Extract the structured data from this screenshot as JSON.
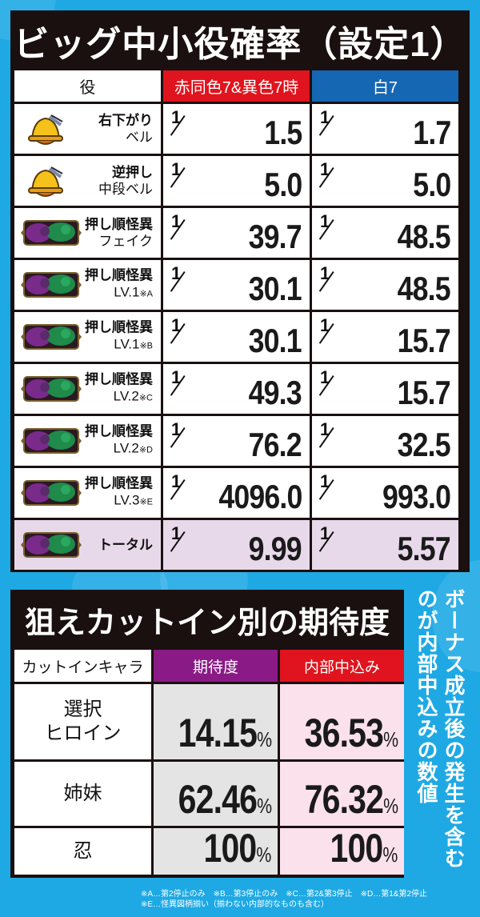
{
  "top_table": {
    "title": "ビッグ中小役確率（設定1）",
    "headers": [
      "役",
      "赤同色7&異色7時",
      "白7"
    ],
    "header_colors": {
      "col1": "#ffffff",
      "col2": "#e0141e",
      "col3": "#1567b4"
    },
    "rows": [
      {
        "icon": "bell-icon",
        "label1": "右下がり",
        "label2": "ベル",
        "note": "",
        "red_denom": "1.5",
        "white_denom": "1.7"
      },
      {
        "icon": "bell-icon",
        "label1": "逆押し",
        "label2": "中段ベル",
        "note": "",
        "red_denom": "5.0",
        "white_denom": "5.0"
      },
      {
        "icon": "kaii-plate-icon",
        "label1": "押し順怪異",
        "label2": "フェイク",
        "note": "",
        "red_denom": "39.7",
        "white_denom": "48.5"
      },
      {
        "icon": "kaii-plate-icon",
        "label1": "押し順怪異",
        "label2": "LV.1",
        "note": "※A",
        "red_denom": "30.1",
        "white_denom": "48.5"
      },
      {
        "icon": "kaii-plate-icon",
        "label1": "押し順怪異",
        "label2": "LV.1",
        "note": "※B",
        "red_denom": "30.1",
        "white_denom": "15.7"
      },
      {
        "icon": "kaii-plate-icon",
        "label1": "押し順怪異",
        "label2": "LV.2",
        "note": "※C",
        "red_denom": "49.3",
        "white_denom": "15.7"
      },
      {
        "icon": "kaii-plate-icon",
        "label1": "押し順怪異",
        "label2": "LV.2",
        "note": "※D",
        "red_denom": "76.2",
        "white_denom": "32.5"
      },
      {
        "icon": "kaii-plate-icon",
        "label1": "押し順怪異",
        "label2": "LV.3",
        "note": "※E",
        "red_denom": "4096.0",
        "white_denom": "993.0"
      },
      {
        "icon": "kaii-plate-icon",
        "label1": "トータル",
        "label2": "",
        "note": "",
        "red_denom": "9.99",
        "white_denom": "5.57",
        "highlight": true
      }
    ],
    "fraction_numerator": "1",
    "total_row_color": "#e8d9ea"
  },
  "bottom_table": {
    "title": "狙えカットイン別の期待度",
    "headers": [
      "カットインキャラ",
      "期待度",
      "内部中込み"
    ],
    "header_colors": {
      "col1": "#ffffff",
      "col2": "#8a1a86",
      "col3": "#e0141e"
    },
    "rows": [
      {
        "chara1": "選択",
        "chara2": "ヒロイン",
        "expect": "14.15",
        "internal": "36.53"
      },
      {
        "chara1": "姉妹",
        "chara2": "",
        "expect": "62.46",
        "internal": "76.32"
      },
      {
        "chara1": "忍",
        "chara2": "",
        "expect": "100",
        "internal": "100"
      }
    ],
    "percent_sign": "%",
    "expect_bg": "#e4e4e4",
    "internal_bg": "#fbe1ec"
  },
  "side_note": "ボーナス成立後の発生を含むのが内部中込みの数値",
  "footnotes": {
    "line1": "※A…第2停止のみ　※B…第3停止のみ　※C…第2&第3停止　※D…第1&第2停止",
    "line2": "※E…怪異図柄揃い（揃わない内部的なものも含む）"
  },
  "colors": {
    "background": "#1ea9e4",
    "panel": "#1a1010"
  }
}
